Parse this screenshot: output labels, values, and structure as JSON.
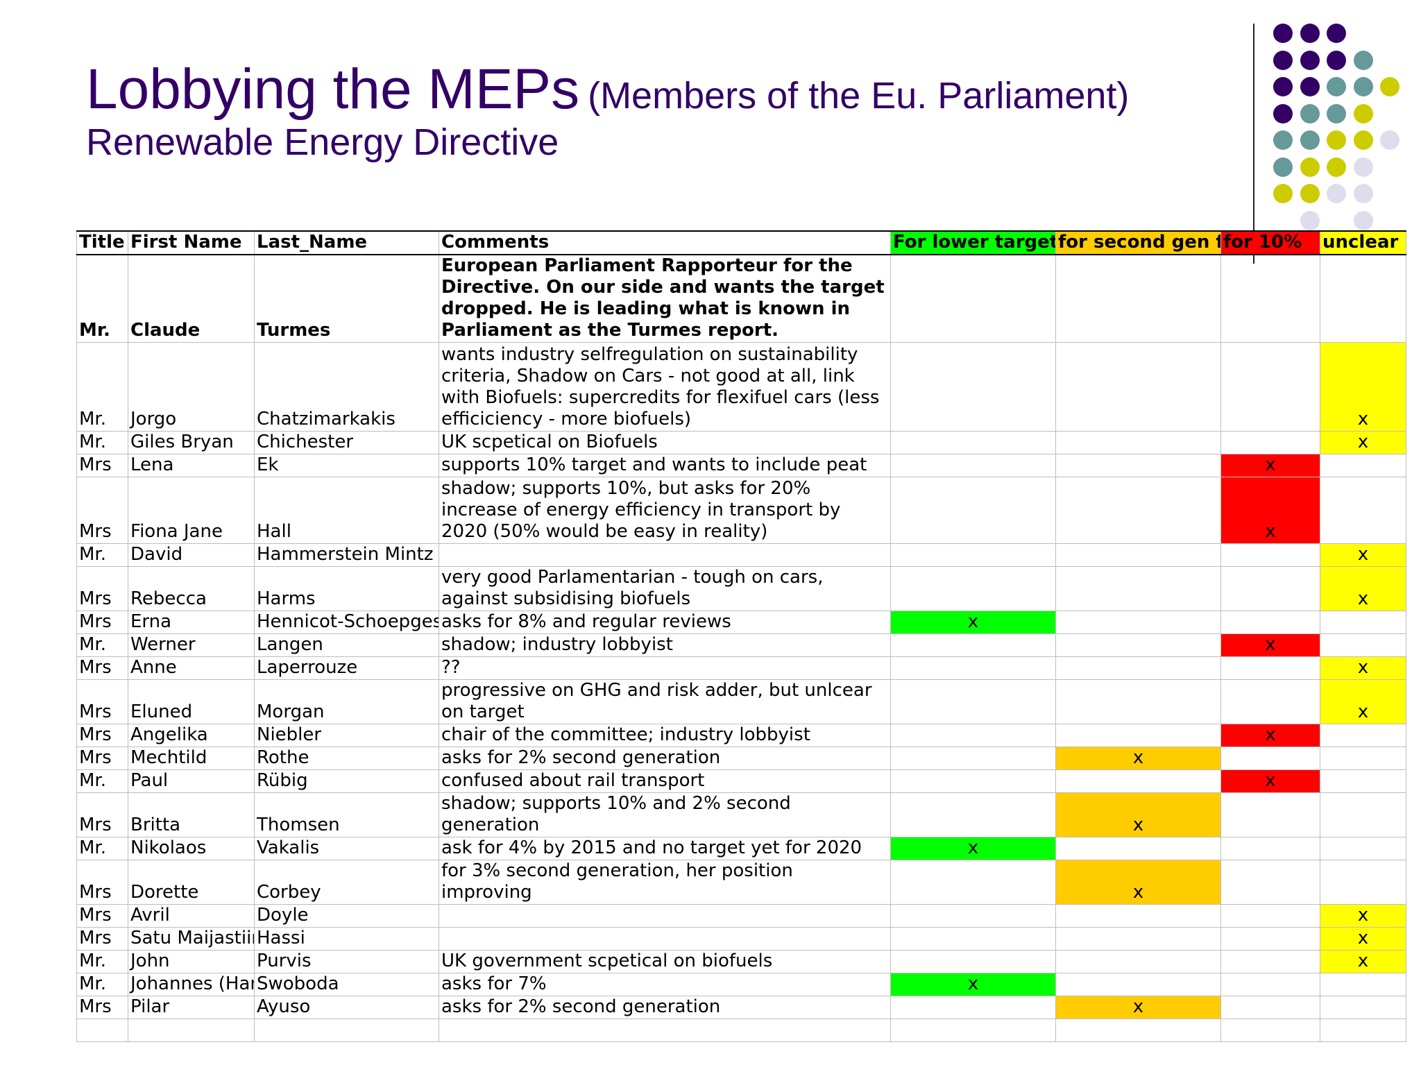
{
  "title": {
    "main": "Lobbying the MEPs",
    "paren": "(Members of the Eu. Parliament)",
    "subtitle": "Renewable Energy Directive"
  },
  "colors": {
    "title": "#330066",
    "lower_target": "#00ff00",
    "second_gen": "#ffcc00",
    "for_10": "#ff0000",
    "unclear": "#ffff00",
    "dot_purple": "#330066",
    "dot_teal": "#669999",
    "dot_olive": "#cccc00",
    "dot_lavender": "#ddddee"
  },
  "table": {
    "headers": {
      "title": "Title",
      "first": "First Name",
      "last": "Last_Name",
      "comments": "Comments",
      "lower": "For lower target",
      "second": "for second gen fuels",
      "ten": "for 10%",
      "unclear": "unclear"
    },
    "rows": [
      {
        "title": "Mr.",
        "first": "Claude",
        "last": "Turmes",
        "comments": "European Parliament Rapporteur for the Directive. On our side and wants the target dropped. He is leading what is known in Parliament as the Turmes report.",
        "mark": "",
        "cat": ""
      },
      {
        "title": "Mr.",
        "first": "Jorgo",
        "last": "Chatzimarkakis",
        "comments": "wants industry selfregulation on sustainability criteria, Shadow on Cars - not good at all, link with Biofuels: supercredits for flexifuel cars (less efficiciency - more biofuels)",
        "mark": "x",
        "cat": "unclear"
      },
      {
        "title": "Mr.",
        "first": "Giles Bryan",
        "last": "Chichester",
        "comments": "UK scpetical on Biofuels",
        "mark": "x",
        "cat": "unclear"
      },
      {
        "title": "Mrs",
        "first": "Lena",
        "last": "Ek",
        "comments": "supports 10% target and wants to include peat",
        "mark": "x",
        "cat": "ten"
      },
      {
        "title": "Mrs",
        "first": "Fiona Jane",
        "last": "Hall",
        "comments": "shadow; supports 10%, but asks for 20% increase of energy efficiency in transport by 2020 (50% would be easy in reality)",
        "mark": "x",
        "cat": "ten"
      },
      {
        "title": "Mr.",
        "first": "David",
        "last": "Hammerstein Mintz",
        "comments": "",
        "mark": "x",
        "cat": "unclear"
      },
      {
        "title": "Mrs",
        "first": "Rebecca",
        "last": "Harms",
        "comments": "very good Parlamentarian - tough on cars, against subsidising biofuels",
        "mark": "x",
        "cat": "unclear"
      },
      {
        "title": "Mrs",
        "first": "Erna",
        "last": "Hennicot-Schoepges",
        "comments": "asks for 8% and regular reviews",
        "mark": "x",
        "cat": "lower"
      },
      {
        "title": "Mr.",
        "first": "Werner",
        "last": "Langen",
        "comments": "shadow; industry lobbyist",
        "mark": "x",
        "cat": "ten"
      },
      {
        "title": "Mrs",
        "first": "Anne",
        "last": "Laperrouze",
        "comments": "??",
        "mark": "x",
        "cat": "unclear"
      },
      {
        "title": "Mrs",
        "first": "Eluned",
        "last": "Morgan",
        "comments": "progressive on GHG and risk adder, but unlcear on target",
        "mark": "x",
        "cat": "unclear"
      },
      {
        "title": "Mrs",
        "first": "Angelika",
        "last": "Niebler",
        "comments": "chair of the committee; industry lobbyist",
        "mark": "x",
        "cat": "ten"
      },
      {
        "title": "Mrs",
        "first": "Mechtild",
        "last": "Rothe",
        "comments": "asks for 2% second generation",
        "mark": "x",
        "cat": "second"
      },
      {
        "title": "Mr.",
        "first": "Paul",
        "last": "Rübig",
        "comments": "confused about rail transport",
        "mark": "x",
        "cat": "ten"
      },
      {
        "title": "Mrs",
        "first": "Britta",
        "last": "Thomsen",
        "comments": "shadow; supports 10%  and 2% second generation",
        "mark": "x",
        "cat": "second"
      },
      {
        "title": "Mr.",
        "first": "Nikolaos",
        "last": "Vakalis",
        "comments": "ask for 4% by 2015 and no target yet for 2020",
        "mark": "x",
        "cat": "lower"
      },
      {
        "title": "Mrs",
        "first": "Dorette",
        "last": "Corbey",
        "comments": "for 3% second generation, her position improving",
        "mark": "x",
        "cat": "second"
      },
      {
        "title": "Mrs",
        "first": "Avril",
        "last": "Doyle",
        "comments": "",
        "mark": "x",
        "cat": "unclear"
      },
      {
        "title": "Mrs",
        "first": "Satu Maijastiina",
        "last": "Hassi",
        "comments": "",
        "mark": "x",
        "cat": "unclear"
      },
      {
        "title": "Mr.",
        "first": "John",
        "last": "Purvis",
        "comments": "UK government  scpetical on biofuels",
        "mark": "x",
        "cat": "unclear"
      },
      {
        "title": "Mr.",
        "first": "Johannes (Hannes)",
        "last": "Swoboda",
        "comments": "asks for 7%",
        "mark": "x",
        "cat": "lower"
      },
      {
        "title": "Mrs",
        "first": "Pilar",
        "last": "Ayuso",
        "comments": "asks for 2% second generation",
        "mark": "x",
        "cat": "second"
      },
      {
        "title": "",
        "first": "",
        "last": "",
        "comments": "",
        "mark": "",
        "cat": ""
      }
    ]
  }
}
